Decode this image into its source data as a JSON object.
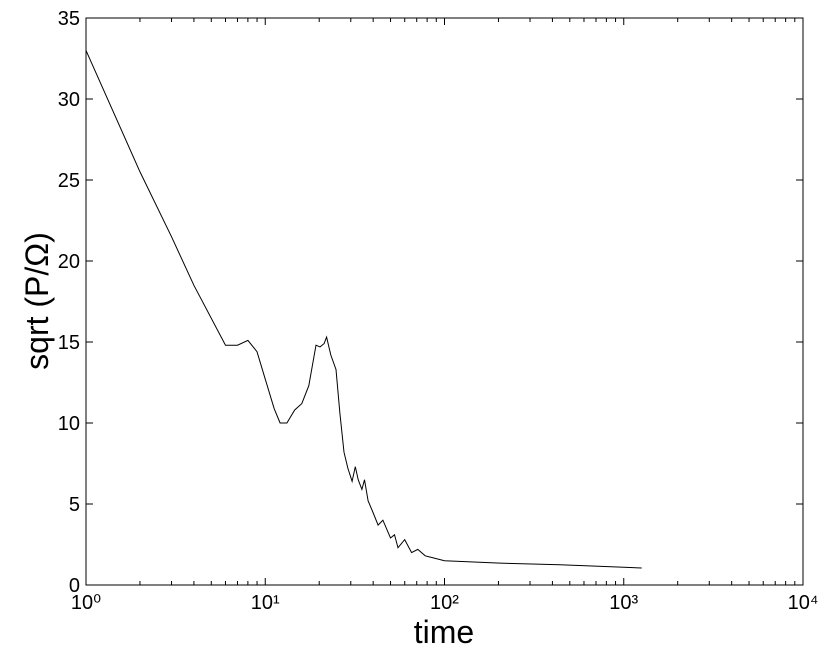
{
  "chart_data": {
    "type": "line",
    "xlabel": "time",
    "ylabel": "sqrt (P/Ω)",
    "xscale": "log",
    "xlim": [
      1,
      10000
    ],
    "ylim": [
      0,
      35
    ],
    "xticks": [
      {
        "value": 1,
        "label": "10⁰"
      },
      {
        "value": 10,
        "label": "10¹"
      },
      {
        "value": 100,
        "label": "10²"
      },
      {
        "value": 1000,
        "label": "10³"
      },
      {
        "value": 10000,
        "label": "10⁴"
      }
    ],
    "xminorticks": [
      2,
      3,
      4,
      5,
      6,
      7,
      8,
      9,
      20,
      30,
      40,
      50,
      60,
      70,
      80,
      90,
      200,
      300,
      400,
      500,
      600,
      700,
      800,
      900,
      2000,
      3000,
      4000,
      5000,
      6000,
      7000,
      8000,
      9000
    ],
    "yticks": [
      0,
      5,
      10,
      15,
      20,
      25,
      30,
      35
    ],
    "series": [
      {
        "color": "#000000",
        "x": [
          1,
          2,
          3,
          4,
          6,
          7,
          8,
          9,
          10,
          11.2,
          12.1,
          13.2,
          14.6,
          16,
          17.5,
          19.2,
          20.2,
          21.3,
          22,
          23.2,
          24.8,
          26.1,
          27.5,
          28.9,
          30.5,
          31.8,
          33,
          34.6,
          35.8,
          37.5,
          39.5,
          42.6,
          45.3,
          50,
          52.6,
          55,
          60,
          65.5,
          71,
          78,
          85,
          100,
          204,
          440,
          1000,
          1260
        ],
        "values": [
          33,
          25.5,
          21.5,
          18.5,
          14.8,
          14.8,
          15.1,
          14.4,
          12.7,
          10.9,
          10,
          10,
          10.8,
          11.2,
          12.3,
          14.8,
          14.7,
          14.9,
          15.3,
          14.2,
          13.3,
          10.6,
          8.2,
          7.2,
          6.4,
          7.3,
          6.5,
          5.9,
          6.5,
          5.2,
          4.6,
          3.7,
          4,
          2.9,
          3.1,
          2.3,
          2.8,
          2,
          2.2,
          1.8,
          1.7,
          1.5,
          1.35,
          1.25,
          1.1,
          1.05
        ]
      }
    ]
  }
}
